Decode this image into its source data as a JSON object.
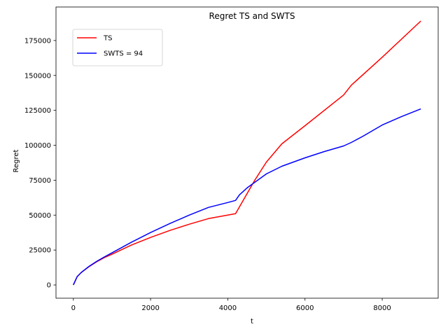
{
  "chart_data": {
    "type": "line",
    "title": "Regret TS and SWTS",
    "xlabel": "t",
    "ylabel": "Regret",
    "xlim": [
      -450,
      9450
    ],
    "ylim": [
      -9500,
      199000
    ],
    "xticks": [
      0,
      2000,
      4000,
      6000,
      8000
    ],
    "yticks": [
      0,
      25000,
      50000,
      75000,
      100000,
      125000,
      150000,
      175000
    ],
    "grid": false,
    "legend": "top-left",
    "series": [
      {
        "name": "TS",
        "color": "#ff0000",
        "x": [
          0,
          100,
          200,
          400,
          600,
          800,
          1000,
          1500,
          2000,
          2500,
          3000,
          3500,
          4000,
          4200,
          4700,
          5000,
          5400,
          6000,
          7000,
          7200,
          8000,
          9000
        ],
        "y": [
          0,
          6000,
          8800,
          13000,
          16500,
          19500,
          22000,
          28500,
          34000,
          39000,
          43500,
          47500,
          50000,
          51000,
          75000,
          88000,
          101000,
          114000,
          136000,
          143000,
          163000,
          189000
        ]
      },
      {
        "name": "SWTS = 94",
        "color": "#0000ff",
        "x": [
          0,
          100,
          200,
          400,
          600,
          800,
          1000,
          1500,
          2000,
          2500,
          3000,
          3500,
          4000,
          4200,
          4300,
          4500,
          5000,
          5400,
          6000,
          6500,
          7000,
          7200,
          7500,
          8000,
          8500,
          9000
        ],
        "y": [
          0,
          6000,
          8800,
          13200,
          16800,
          20000,
          23000,
          30500,
          37500,
          44000,
          50000,
          55500,
          59000,
          60500,
          64500,
          69500,
          79500,
          85000,
          91000,
          95500,
          99500,
          102000,
          106500,
          114500,
          120500,
          126000
        ]
      }
    ]
  }
}
